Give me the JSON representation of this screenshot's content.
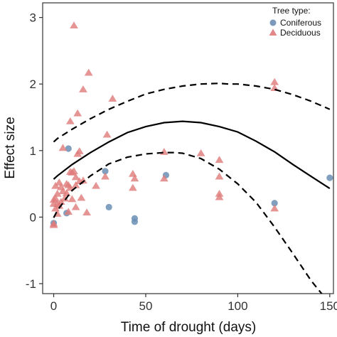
{
  "chart_data": {
    "type": "scatter",
    "xlabel": "Time of drought (days)",
    "ylabel": "Effect size",
    "xlim": [
      -6,
      152
    ],
    "ylim": [
      -1.15,
      3.22
    ],
    "xticks": [
      0,
      50,
      100,
      150
    ],
    "yticks": [
      -1,
      0,
      1,
      2,
      3
    ],
    "grid": false,
    "legend": {
      "title": "Tree type:",
      "position": "top-right",
      "entries": [
        {
          "label": "Coniferous",
          "marker": "circle",
          "color": "#6b8fb5"
        },
        {
          "label": "Deciduous",
          "marker": "triangle",
          "color": "#e07b7b"
        }
      ]
    },
    "series": [
      {
        "name": "Coniferous",
        "marker": "circle",
        "color": "#6b8fb5",
        "points": [
          [
            0,
            -0.09
          ],
          [
            7,
            0.06
          ],
          [
            8,
            1.03
          ],
          [
            28,
            0.69
          ],
          [
            30,
            0.15
          ],
          [
            44,
            -0.02
          ],
          [
            44,
            -0.07
          ],
          [
            61,
            0.63
          ],
          [
            120,
            0.21
          ],
          [
            150,
            0.59
          ]
        ]
      },
      {
        "name": "Deciduous",
        "marker": "triangle",
        "color": "#e07b7b",
        "points": [
          [
            0,
            -0.1
          ],
          [
            0,
            -0.12
          ],
          [
            0,
            0.2
          ],
          [
            0,
            0.26
          ],
          [
            1,
            0.47
          ],
          [
            1,
            0.28
          ],
          [
            1,
            0.13
          ],
          [
            2,
            0.05
          ],
          [
            2,
            0.35
          ],
          [
            2,
            0.2
          ],
          [
            3,
            0.17
          ],
          [
            3,
            0.52
          ],
          [
            4,
            0.23
          ],
          [
            4,
            0.45
          ],
          [
            5,
            1.04
          ],
          [
            5,
            0.39
          ],
          [
            6,
            0.28
          ],
          [
            7,
            0.36
          ],
          [
            7,
            0.5
          ],
          [
            8,
            0.48
          ],
          [
            8,
            0.08
          ],
          [
            9,
            0.68
          ],
          [
            9,
            0.44
          ],
          [
            9,
            1.44
          ],
          [
            10,
            0.27
          ],
          [
            10,
            0.67
          ],
          [
            11,
            2.88
          ],
          [
            11,
            0.69
          ],
          [
            12,
            0.6
          ],
          [
            12,
            0.48
          ],
          [
            12,
            0.15
          ],
          [
            13,
            1.56
          ],
          [
            13,
            0.95
          ],
          [
            14,
            0.99
          ],
          [
            14,
            0.54
          ],
          [
            15,
            0.29
          ],
          [
            16,
            1.92
          ],
          [
            16,
            0.55
          ],
          [
            18,
            0.07
          ],
          [
            19,
            2.17
          ],
          [
            23,
            0.47
          ],
          [
            28,
            0.61
          ],
          [
            29,
            1.24
          ],
          [
            32,
            1.78
          ],
          [
            43,
            0.44
          ],
          [
            43,
            0.65
          ],
          [
            44,
            0.58
          ],
          [
            60,
            0.58
          ],
          [
            60,
            0.98
          ],
          [
            80,
            0.96
          ],
          [
            90,
            0.86
          ],
          [
            90,
            0.61
          ],
          [
            90,
            0.35
          ],
          [
            90,
            0.3
          ],
          [
            120,
            2.03
          ],
          [
            120,
            1.94
          ],
          [
            120,
            0.13
          ]
        ]
      }
    ],
    "fit": {
      "type": "quadratic",
      "center": {
        "x": [
          0,
          2,
          10,
          20,
          30,
          40,
          50,
          60,
          70,
          80,
          90,
          100,
          110,
          120,
          130,
          140,
          150
        ],
        "y": [
          0.57,
          0.62,
          0.79,
          0.97,
          1.13,
          1.27,
          1.36,
          1.42,
          1.44,
          1.42,
          1.36,
          1.28,
          1.14,
          0.98,
          0.79,
          0.61,
          0.43
        ]
      },
      "upper": {
        "x": [
          0,
          2,
          10,
          20,
          30,
          40,
          50,
          60,
          70,
          80,
          90,
          95,
          100,
          110,
          120,
          130,
          140,
          150
        ],
        "y": [
          1.13,
          1.18,
          1.32,
          1.48,
          1.62,
          1.74,
          1.85,
          1.92,
          1.97,
          2.0,
          2.01,
          2.0,
          2.0,
          1.97,
          1.92,
          1.84,
          1.74,
          1.62
        ]
      },
      "lower": {
        "x": [
          0,
          2,
          10,
          20,
          30,
          40,
          50,
          60,
          65,
          70,
          80,
          90,
          100,
          110,
          120,
          130,
          140,
          150
        ],
        "y": [
          -0.01,
          0.1,
          0.4,
          0.62,
          0.8,
          0.9,
          0.95,
          0.97,
          0.97,
          0.96,
          0.88,
          0.72,
          0.5,
          0.22,
          -0.15,
          -0.55,
          -0.96,
          -1.3
        ]
      }
    }
  }
}
